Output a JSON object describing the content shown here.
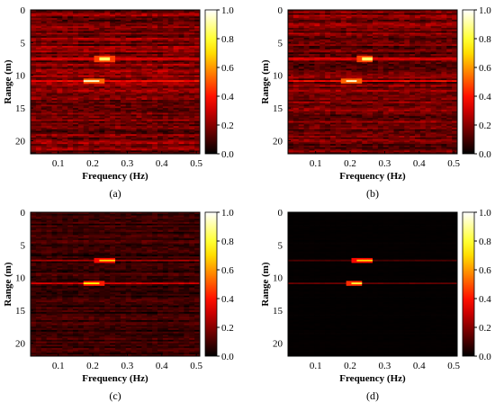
{
  "chart_data": [
    {
      "type": "heatmap",
      "caption": "(a)",
      "xlabel": "Frequency (Hz)",
      "ylabel": "Range (m)",
      "x_ticks": [
        "0.1",
        "0.2",
        "0.3",
        "0.4",
        "0.5"
      ],
      "x_tick_values": [
        0.1,
        0.2,
        0.3,
        0.4,
        0.5
      ],
      "y_ticks": [
        "0",
        "5",
        "10",
        "15",
        "20"
      ],
      "y_tick_values": [
        0,
        5,
        10,
        15,
        20
      ],
      "xlim": [
        0.02,
        0.51
      ],
      "ylim": [
        0,
        22
      ],
      "colorbar_ticks": [
        "0.0",
        "0.2",
        "0.4",
        "0.6",
        "0.8",
        "1.0"
      ],
      "colorbar_range": [
        0,
        1
      ],
      "colormap": "hot",
      "background_level": 0.18,
      "noise_amplitude": 0.17,
      "peaks": [
        {
          "range_m": 7.5,
          "freq_hz": [
            0.22,
            0.25
          ],
          "value": 0.85
        },
        {
          "range_m": 10.9,
          "freq_hz": [
            0.18,
            0.22
          ],
          "value": 0.95
        }
      ],
      "bands": [
        {
          "range_m": 7.5,
          "value": 0.34
        },
        {
          "range_m": 10.9,
          "value": 0.42
        }
      ]
    },
    {
      "type": "heatmap",
      "caption": "(b)",
      "xlabel": "Frequency (Hz)",
      "ylabel": "Range (m)",
      "x_ticks": [
        "0.1",
        "0.2",
        "0.3",
        "0.4",
        "0.5"
      ],
      "x_tick_values": [
        0.1,
        0.2,
        0.3,
        0.4,
        0.5
      ],
      "y_ticks": [
        "0",
        "5",
        "10",
        "15",
        "20"
      ],
      "y_tick_values": [
        0,
        5,
        10,
        15,
        20
      ],
      "xlim": [
        0.02,
        0.51
      ],
      "ylim": [
        0,
        22
      ],
      "colorbar_ticks": [
        "0.0",
        "0.2",
        "0.4",
        "0.6",
        "0.8",
        "1.0"
      ],
      "colorbar_range": [
        0,
        1
      ],
      "colormap": "hot",
      "background_level": 0.17,
      "noise_amplitude": 0.16,
      "peaks": [
        {
          "range_m": 7.5,
          "freq_hz": [
            0.23,
            0.26
          ],
          "value": 0.85
        },
        {
          "range_m": 10.9,
          "freq_hz": [
            0.19,
            0.22
          ],
          "value": 0.95
        }
      ],
      "bands": [
        {
          "range_m": 7.5,
          "value": 0.34
        },
        {
          "range_m": 10.9,
          "value": 0.42
        }
      ]
    },
    {
      "type": "heatmap",
      "caption": "(c)",
      "xlabel": "Frequency (Hz)",
      "ylabel": "Range (m)",
      "x_ticks": [
        "0.1",
        "0.2",
        "0.3",
        "0.4",
        "0.5"
      ],
      "x_tick_values": [
        0.1,
        0.2,
        0.3,
        0.4,
        0.5
      ],
      "y_ticks": [
        "0",
        "5",
        "10",
        "15",
        "20"
      ],
      "y_tick_values": [
        0,
        5,
        10,
        15,
        20
      ],
      "xlim": [
        0.02,
        0.51
      ],
      "ylim": [
        0,
        22
      ],
      "colorbar_ticks": [
        "0.0",
        "0.2",
        "0.4",
        "0.6",
        "0.8",
        "1.0"
      ],
      "colorbar_range": [
        0,
        1
      ],
      "colormap": "hot",
      "background_level": 0.08,
      "noise_amplitude": 0.1,
      "peaks": [
        {
          "range_m": 7.4,
          "freq_hz": [
            0.22,
            0.26
          ],
          "value": 0.7
        },
        {
          "range_m": 10.9,
          "freq_hz": [
            0.18,
            0.22
          ],
          "value": 0.75
        }
      ],
      "bands": [
        {
          "range_m": 7.4,
          "value": 0.28
        },
        {
          "range_m": 10.9,
          "value": 0.34
        }
      ]
    },
    {
      "type": "heatmap",
      "caption": "(d)",
      "xlabel": "Frequency (Hz)",
      "ylabel": "Range (m)",
      "x_ticks": [
        "0.1",
        "0.2",
        "0.3",
        "0.4",
        "0.5"
      ],
      "x_tick_values": [
        0.1,
        0.2,
        0.3,
        0.4,
        0.5
      ],
      "y_ticks": [
        "0",
        "5",
        "10",
        "15",
        "20"
      ],
      "y_tick_values": [
        0,
        5,
        10,
        15,
        20
      ],
      "xlim": [
        0.02,
        0.51
      ],
      "ylim": [
        0,
        22
      ],
      "colorbar_ticks": [
        "0.0",
        "0.2",
        "0.4",
        "0.6",
        "0.8",
        "1.0"
      ],
      "colorbar_range": [
        0,
        1
      ],
      "colormap": "hot",
      "background_level": 0.005,
      "noise_amplitude": 0.005,
      "peaks": [
        {
          "range_m": 7.4,
          "freq_hz": [
            0.22,
            0.26
          ],
          "value": 0.7
        },
        {
          "range_m": 10.9,
          "freq_hz": [
            0.2,
            0.23
          ],
          "value": 0.8
        }
      ],
      "bands": [
        {
          "range_m": 7.4,
          "value": 0.12
        },
        {
          "range_m": 10.9,
          "value": 0.16
        }
      ]
    }
  ]
}
